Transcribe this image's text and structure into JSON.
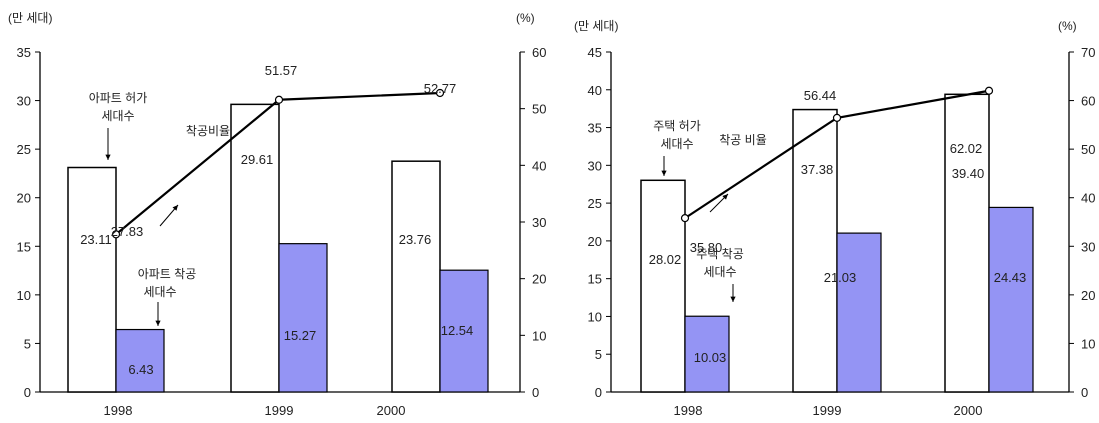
{
  "chart_data": [
    {
      "type": "bar+line",
      "left_unit": "(만 세대)",
      "right_unit": "(%)",
      "categories": [
        "1998",
        "1999",
        "2000"
      ],
      "ylim_left": [
        0,
        35
      ],
      "ylim_right": [
        0,
        60
      ],
      "left_ticks": [
        "0",
        "5",
        "10",
        "15",
        "20",
        "25",
        "30",
        "35"
      ],
      "right_ticks": [
        "0",
        "10",
        "20",
        "30",
        "40",
        "50",
        "60"
      ],
      "series": [
        {
          "name": "아파트 허가 세대수",
          "kind": "bar",
          "axis": "left",
          "values": [
            23.11,
            29.61,
            23.76
          ],
          "labels": [
            "23.11",
            "29.61",
            "23.76"
          ]
        },
        {
          "name": "아파트 착공 세대수",
          "kind": "bar",
          "axis": "left",
          "values": [
            6.43,
            15.27,
            12.54
          ],
          "labels": [
            "6.43",
            "15.27",
            "12.54"
          ]
        },
        {
          "name": "착공비율",
          "kind": "line",
          "axis": "right",
          "values": [
            27.83,
            51.57,
            52.77
          ],
          "labels": [
            "27.83",
            "51.57",
            "52.77"
          ]
        }
      ],
      "annotations": [
        {
          "lines": [
            "아파트 허가",
            "세대수"
          ],
          "target": "bar1"
        },
        {
          "lines": [
            "착공비율"
          ],
          "target": "line"
        },
        {
          "lines": [
            "아파트 착공",
            "세대수"
          ],
          "target": "bar2"
        }
      ],
      "colors": {
        "bar1": "#ffffff",
        "bar2": "#9494f4",
        "line": "#000000"
      }
    },
    {
      "type": "bar+line",
      "left_unit": "(만 세대)",
      "right_unit": "(%)",
      "categories": [
        "1998",
        "1999",
        "2000"
      ],
      "ylim_left": [
        0,
        45
      ],
      "ylim_right": [
        0,
        70
      ],
      "left_ticks": [
        "0",
        "5",
        "10",
        "15",
        "20",
        "25",
        "30",
        "35",
        "40",
        "45"
      ],
      "right_ticks": [
        "0",
        "10",
        "20",
        "30",
        "40",
        "50",
        "60",
        "70"
      ],
      "series": [
        {
          "name": "주택 허가 세대수",
          "kind": "bar",
          "axis": "left",
          "values": [
            28.02,
            37.38,
            39.4
          ],
          "labels": [
            "28.02",
            "37.38",
            "39.40"
          ]
        },
        {
          "name": "주택 착공 세대수",
          "kind": "bar",
          "axis": "left",
          "values": [
            10.03,
            21.03,
            24.43
          ],
          "labels": [
            "10.03",
            "21.03",
            "24.43"
          ]
        },
        {
          "name": "착공 비율",
          "kind": "line",
          "axis": "right",
          "values": [
            35.8,
            56.44,
            62.02
          ],
          "labels": [
            "35.80",
            "56.44",
            "62.02"
          ]
        }
      ],
      "annotations": [
        {
          "lines": [
            "주택 허가",
            "세대수"
          ],
          "target": "bar1"
        },
        {
          "lines": [
            "착공 비율"
          ],
          "target": "line"
        },
        {
          "lines": [
            "주택 착공",
            "세대수"
          ],
          "target": "bar2"
        }
      ],
      "colors": {
        "bar1": "#ffffff",
        "bar2": "#9494f4",
        "line": "#000000"
      }
    }
  ]
}
